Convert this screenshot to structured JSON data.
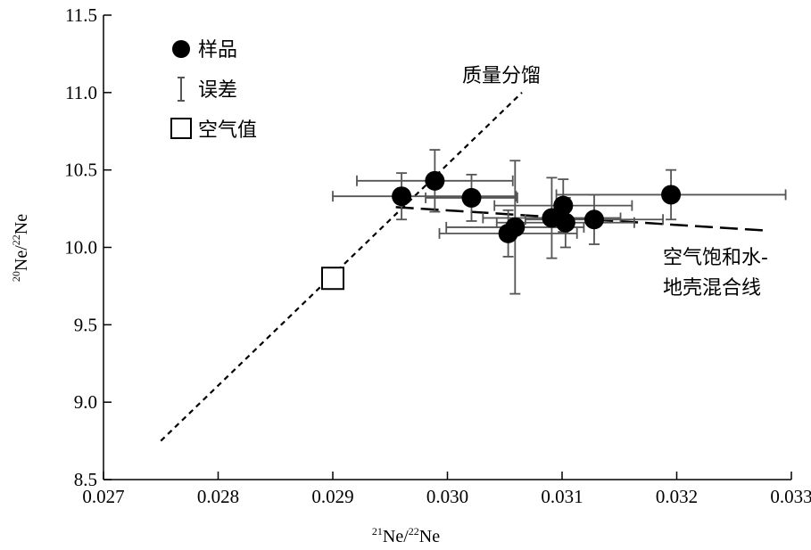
{
  "chart_data": {
    "type": "scatter",
    "x_axis": {
      "label_main": "Ne/",
      "label_sup1": "21",
      "label_sup2": "22",
      "label_tail": "Ne",
      "range": [
        0.027,
        0.033
      ],
      "ticks": [
        "0.027",
        "0.028",
        "0.029",
        "0.030",
        "0.031",
        "0.032",
        "0.033"
      ]
    },
    "y_axis": {
      "label_main": "Ne/",
      "label_sup1": "20",
      "label_sup2": "22",
      "label_tail": "Ne",
      "range": [
        8.5,
        11.5
      ],
      "ticks": [
        "8.5",
        "9.0",
        "9.5",
        "10.0",
        "10.5",
        "11.0",
        "11.5"
      ]
    },
    "legend": {
      "sample": "样品",
      "error": "误差",
      "air": "空气值"
    },
    "annotations": {
      "mass_fractionation": "质量分馏",
      "mixing_line_1": "空气饱和水-",
      "mixing_line_2": "地壳混合线"
    },
    "air_value": {
      "x": 0.029,
      "y": 9.8
    },
    "samples": [
      {
        "x": 0.0296,
        "y": 10.33,
        "xerr_lo": 0.0006,
        "xerr_hi": 0.001,
        "yerr_lo": 0.15,
        "yerr_hi": 0.15
      },
      {
        "x": 0.02989,
        "y": 10.43,
        "xerr_lo": 0.00068,
        "xerr_hi": 0.00068,
        "yerr_lo": 0.2,
        "yerr_hi": 0.2
      },
      {
        "x": 0.03021,
        "y": 10.32,
        "xerr_lo": 0.0004,
        "xerr_hi": 0.0004,
        "yerr_lo": 0.15,
        "yerr_hi": 0.15
      },
      {
        "x": 0.03053,
        "y": 10.09,
        "xerr_lo": 0.0006,
        "xerr_hi": 0.0006,
        "yerr_lo": 0.15,
        "yerr_hi": 0.15
      },
      {
        "x": 0.03059,
        "y": 10.13,
        "xerr_lo": 0.0006,
        "xerr_hi": 0.0006,
        "yerr_lo": 0.43,
        "yerr_hi": 0.43
      },
      {
        "x": 0.03091,
        "y": 10.19,
        "xerr_lo": 0.0006,
        "xerr_hi": 0.0006,
        "yerr_lo": 0.26,
        "yerr_hi": 0.26
      },
      {
        "x": 0.03101,
        "y": 10.27,
        "xerr_lo": 0.0006,
        "xerr_hi": 0.0006,
        "yerr_lo": 0.17,
        "yerr_hi": 0.17
      },
      {
        "x": 0.03103,
        "y": 10.16,
        "xerr_lo": 0.0006,
        "xerr_hi": 0.0006,
        "yerr_lo": 0.16,
        "yerr_hi": 0.16
      },
      {
        "x": 0.03128,
        "y": 10.18,
        "xerr_lo": 0.0006,
        "xerr_hi": 0.0006,
        "yerr_lo": 0.16,
        "yerr_hi": 0.16
      },
      {
        "x": 0.03195,
        "y": 10.34,
        "xerr_lo": 0.001,
        "xerr_hi": 0.001,
        "yerr_lo": 0.16,
        "yerr_hi": 0.16
      }
    ],
    "mass_fractionation_line": [
      [
        0.0275,
        8.75
      ],
      [
        0.03065,
        11.0
      ]
    ],
    "mixing_line": [
      [
        0.02955,
        10.26
      ],
      [
        0.03275,
        10.11
      ]
    ],
    "grid": false
  }
}
